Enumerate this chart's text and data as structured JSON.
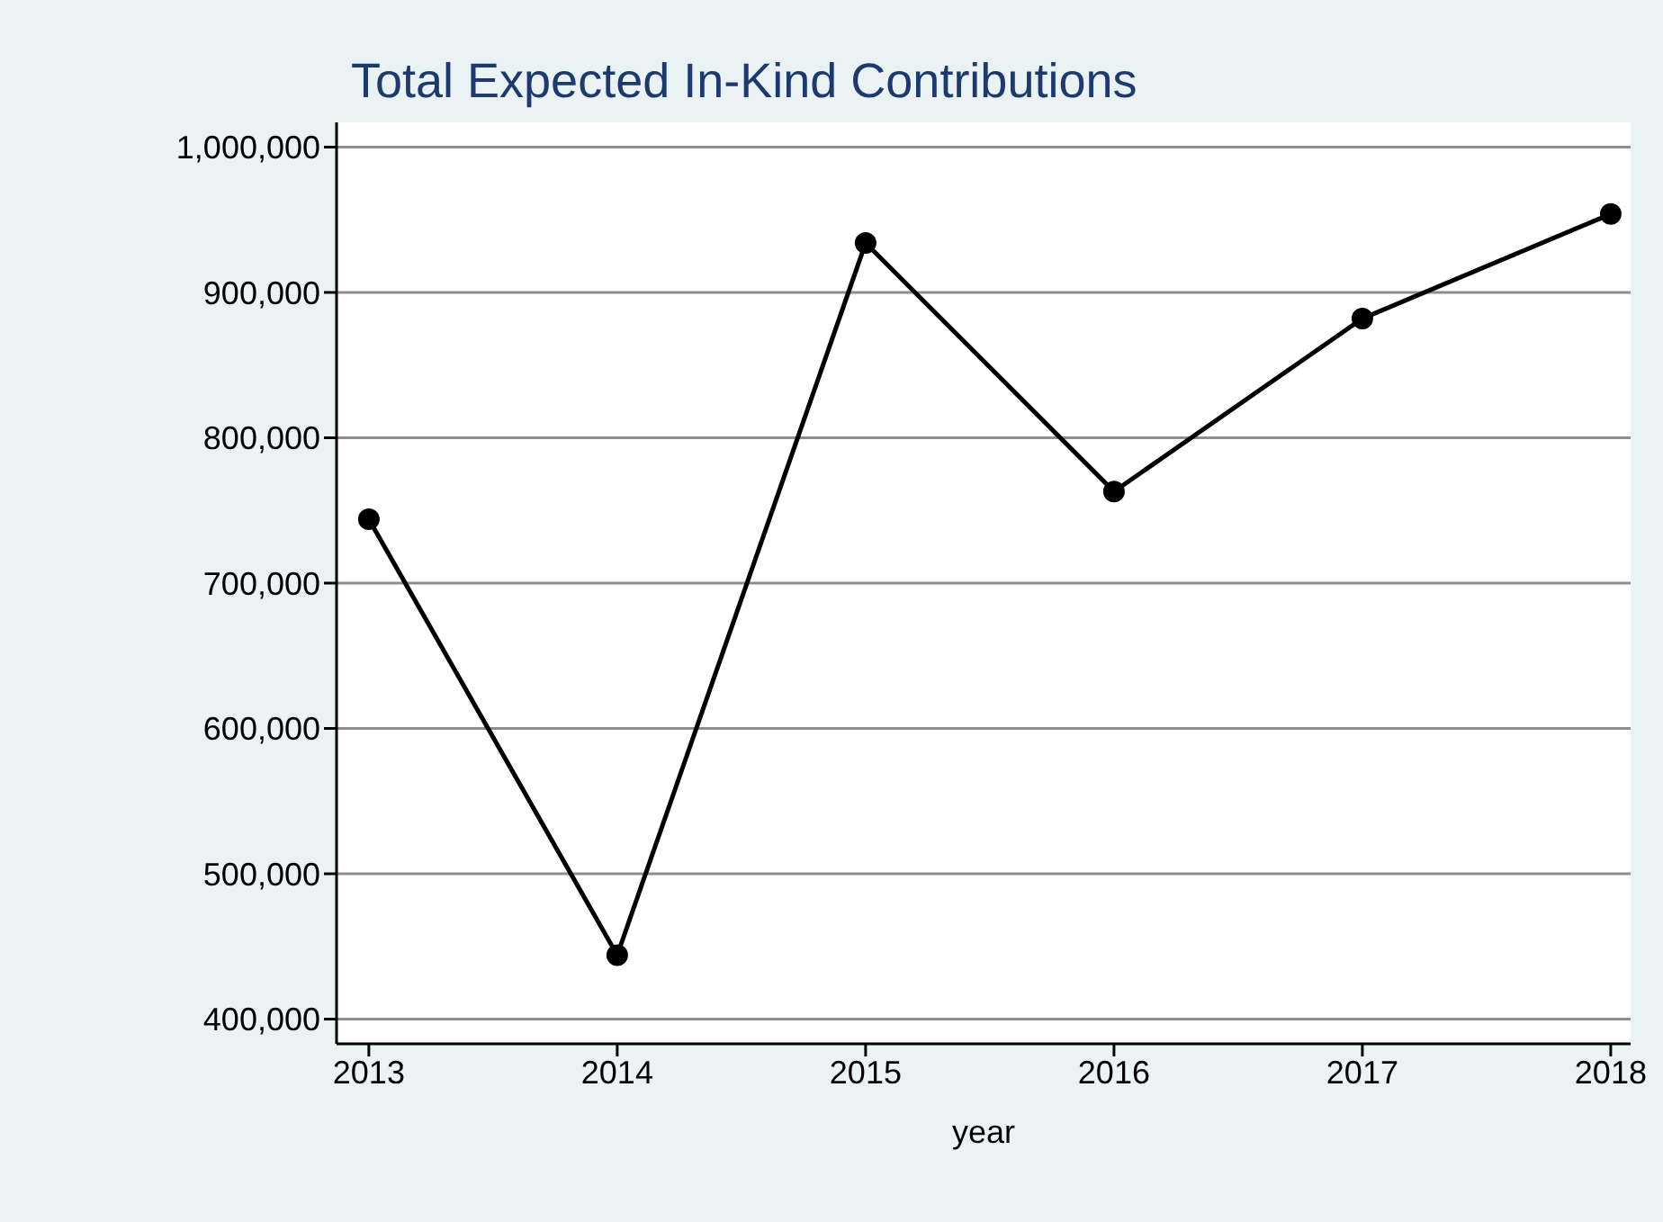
{
  "chart_data": {
    "type": "line",
    "title": "Total Expected In-Kind Contributions",
    "xlabel": "year",
    "x": [
      2013,
      2014,
      2015,
      2016,
      2017,
      2018
    ],
    "series": [
      {
        "color": "#000000",
        "values": [
          744000,
          444000,
          934000,
          763000,
          882000,
          954000
        ]
      }
    ],
    "xlim": [
      2012.87,
      2018.08
    ],
    "xticks": [
      2013,
      2014,
      2015,
      2016,
      2017,
      2018
    ],
    "ylim": [
      383000,
      1017000
    ],
    "yticks": [
      {
        "value": 400000,
        "label": "400,000"
      },
      {
        "value": 500000,
        "label": "500,000"
      },
      {
        "value": 600000,
        "label": "600,000"
      },
      {
        "value": 700000,
        "label": "700,000"
      },
      {
        "value": 800000,
        "label": "800,000"
      },
      {
        "value": 900000,
        "label": "900,000"
      },
      {
        "value": 1000000,
        "label": "1,000,000"
      }
    ],
    "grid": "y",
    "legend": false,
    "marker": "circle",
    "line_style": "solid"
  }
}
